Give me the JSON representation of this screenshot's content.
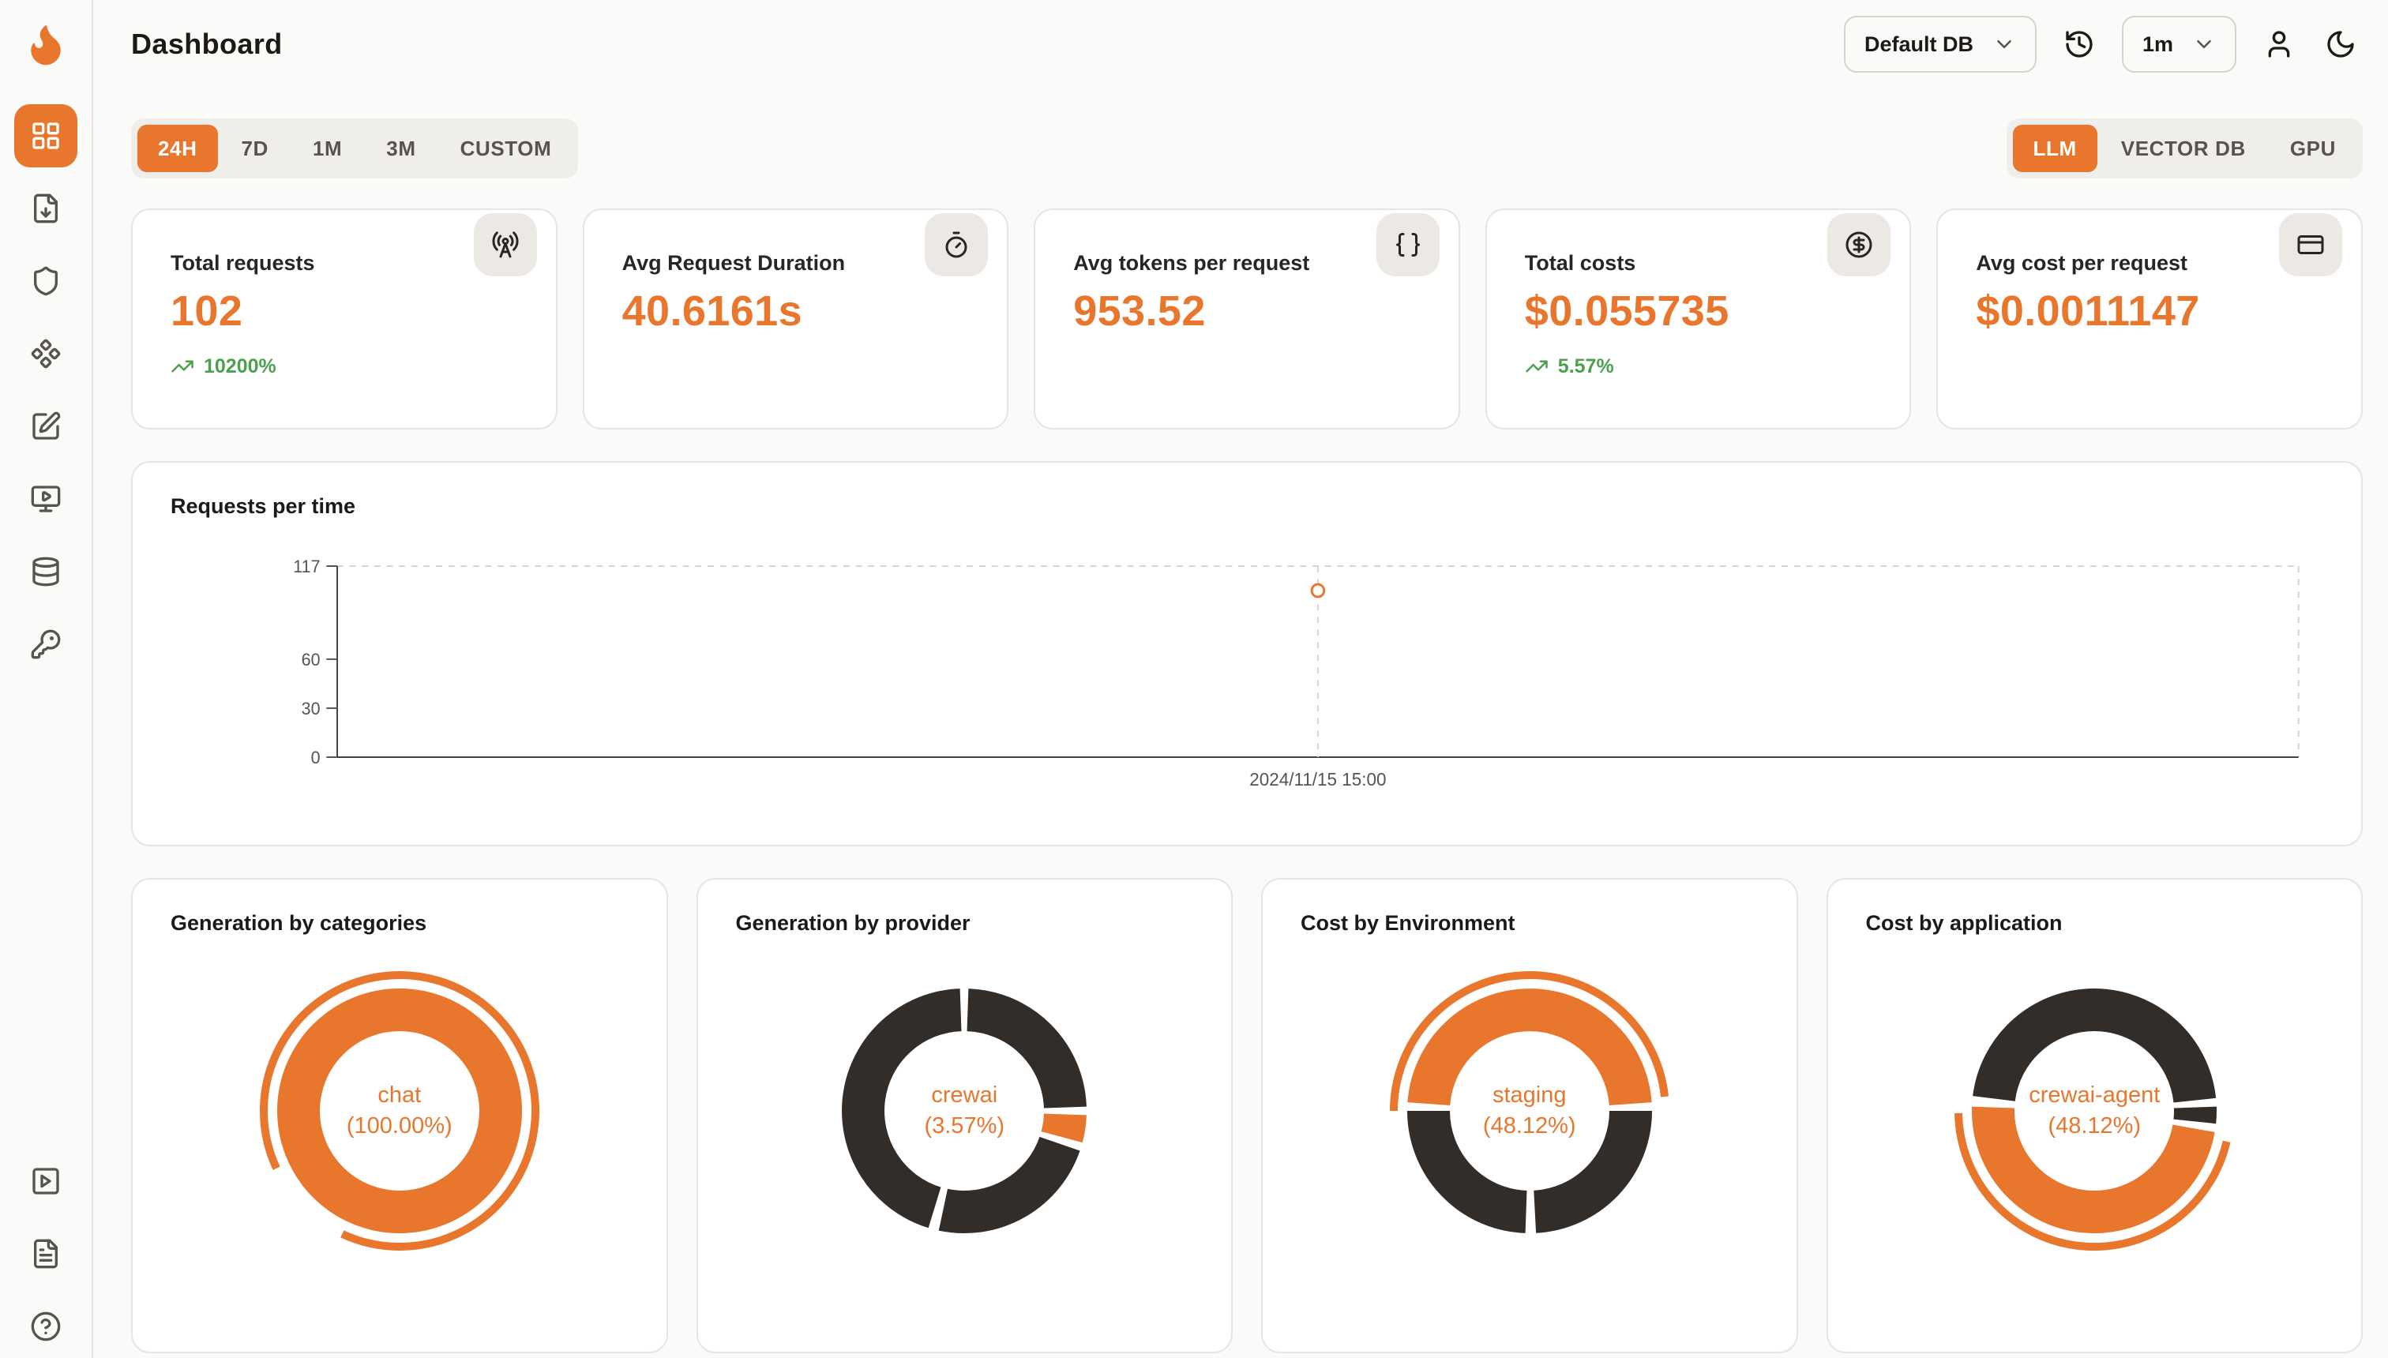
{
  "colors": {
    "accent": "#E8762C",
    "donut_dark": "#322D28",
    "positive": "#4BA24E",
    "background": "#FAFAF9",
    "card_border": "#E7E5E4",
    "axis": "#57534E",
    "grid_dashed": "#D6D3D1"
  },
  "header": {
    "title": "Dashboard",
    "db_select": "Default DB",
    "interval_select": "1m"
  },
  "sidebar": {
    "icons": [
      "dashboard-icon",
      "requests-icon",
      "exceptions-icon",
      "prompt-hub-icon",
      "evaluations-icon",
      "playground-icon",
      "databases-icon",
      "api-keys-icon",
      "video-guide-icon",
      "docs-icon",
      "help-icon"
    ]
  },
  "filters": {
    "time_ranges": [
      "24H",
      "7D",
      "1M",
      "3M",
      "CUSTOM"
    ],
    "active_time_range": "24H",
    "sources": [
      "LLM",
      "VECTOR DB",
      "GPU"
    ],
    "active_source": "LLM"
  },
  "stats": [
    {
      "label": "Total requests",
      "value": "102",
      "delta": "10200%",
      "icon": "radio-tower-icon"
    },
    {
      "label": "Avg Request Duration",
      "value": "40.6161s",
      "icon": "timer-icon"
    },
    {
      "label": "Avg tokens per request",
      "value": "953.52",
      "icon": "braces-icon"
    },
    {
      "label": "Total costs",
      "value": "$0.055735",
      "delta": "5.57%",
      "icon": "circle-dollar-icon"
    },
    {
      "label": "Avg cost per request",
      "value": "$0.0011147",
      "icon": "credit-card-icon"
    }
  ],
  "donut_cards": [
    {
      "title": "Generation by categories",
      "center_label": "chat",
      "center_pct": "(100.00%)"
    },
    {
      "title": "Generation by provider",
      "center_label": "crewai",
      "center_pct": "(3.57%)"
    },
    {
      "title": "Cost by Environment",
      "center_label": "staging",
      "center_pct": "(48.12%)"
    },
    {
      "title": "Cost by application",
      "center_label": "crewai-agent",
      "center_pct": "(48.12%)"
    }
  ],
  "chart_data": [
    {
      "type": "line",
      "title": "Requests per time",
      "x": [
        "2024/11/15 15:00"
      ],
      "values": [
        102
      ],
      "yticks": [
        0,
        30,
        60,
        117
      ],
      "ylim": [
        0,
        117
      ],
      "point_frac": 0.5,
      "grid": "dashed-top-right",
      "legend": "none"
    },
    {
      "type": "pie",
      "title": "Generation by categories",
      "slices": [
        {
          "label": "chat",
          "pct": 100.0
        }
      ],
      "render": {
        "segments": [
          {
            "from": 0,
            "to": 360,
            "color": "accent"
          }
        ],
        "outer_arc": {
          "from": 245,
          "to": 565
        }
      }
    },
    {
      "type": "pie",
      "title": "Generation by provider",
      "slices": [
        {
          "label": "crewai",
          "pct": 3.57
        }
      ],
      "render": {
        "segments": [
          {
            "from": 2,
            "to": 88,
            "color": "dark"
          },
          {
            "from": 92,
            "to": 105,
            "color": "accent"
          },
          {
            "from": 109,
            "to": 192,
            "color": "dark"
          },
          {
            "from": 197,
            "to": 358,
            "color": "dark"
          }
        ]
      }
    },
    {
      "type": "pie",
      "title": "Cost by Environment",
      "slices": [
        {
          "label": "staging",
          "pct": 48.12
        }
      ],
      "render": {
        "segments": [
          {
            "from": -86,
            "to": 86,
            "color": "accent"
          },
          {
            "from": 90,
            "to": 177,
            "color": "dark"
          },
          {
            "from": 182,
            "to": 270,
            "color": "dark"
          }
        ],
        "outer_arc": {
          "from": -90,
          "to": 84
        }
      }
    },
    {
      "type": "pie",
      "title": "Cost by application",
      "slices": [
        {
          "label": "crewai-agent",
          "pct": 48.12
        }
      ],
      "render": {
        "segments": [
          {
            "from": 100,
            "to": 272,
            "color": "accent"
          },
          {
            "from": 277,
            "to": 444,
            "color": "dark"
          },
          {
            "from": 88,
            "to": 96,
            "color": "dark"
          }
        ],
        "outer_arc": {
          "from": 103,
          "to": 269
        }
      }
    }
  ]
}
